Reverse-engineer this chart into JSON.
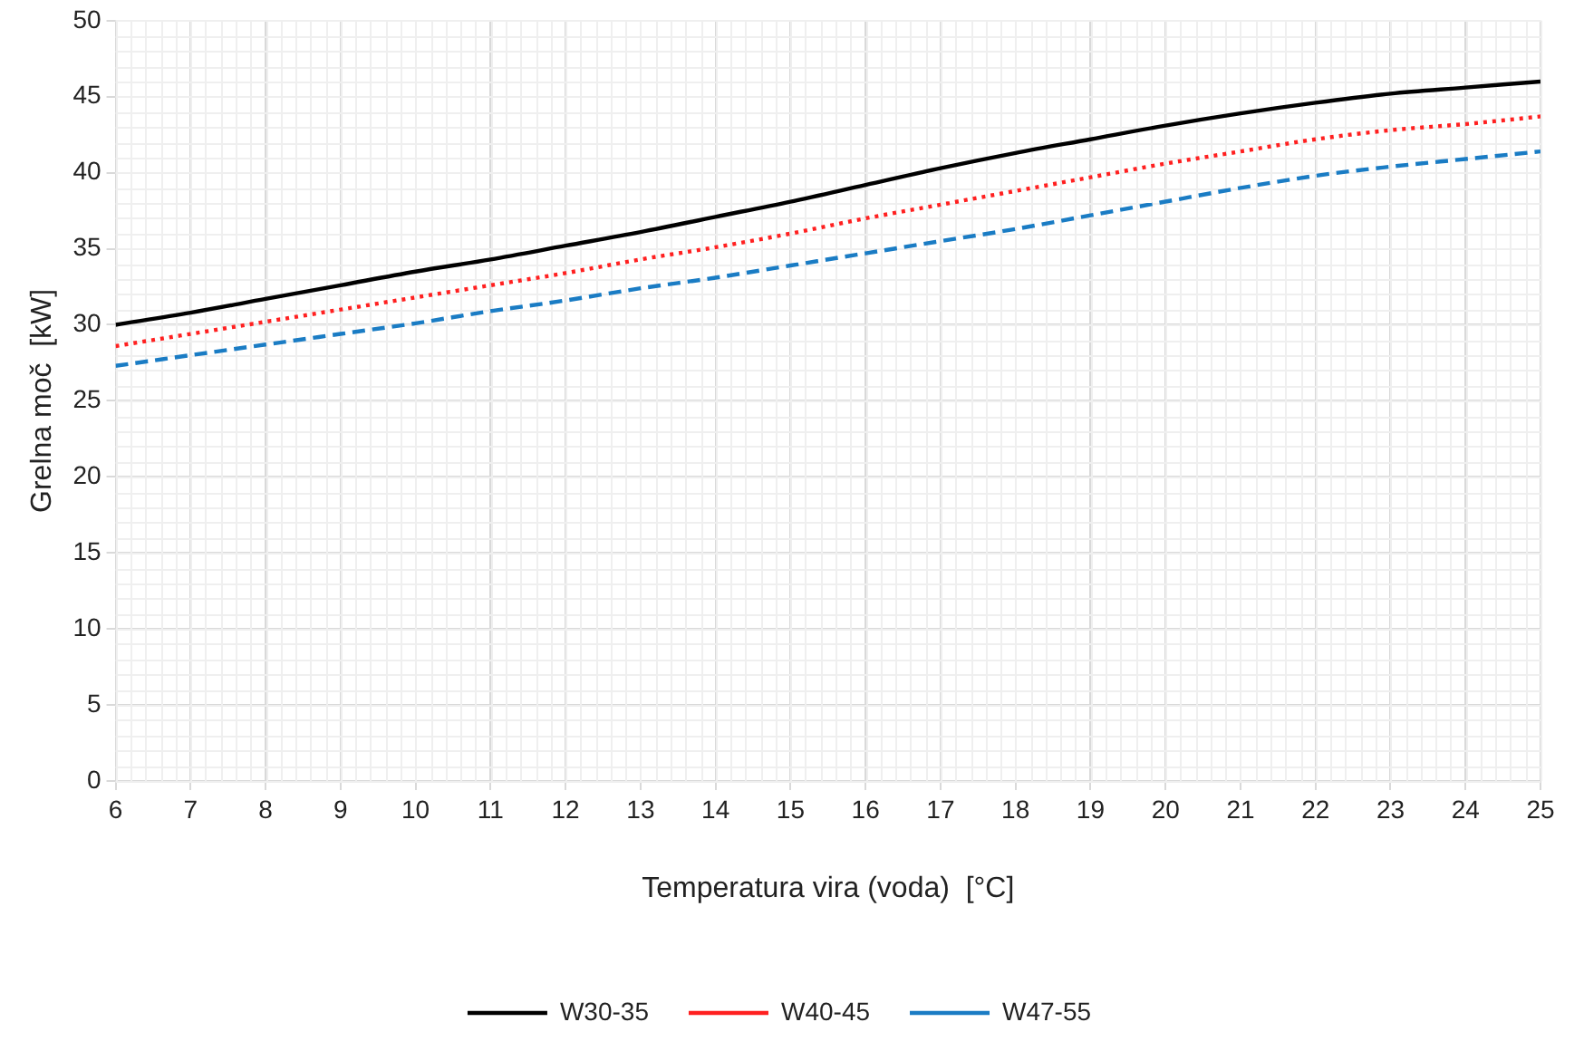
{
  "chart_data": {
    "type": "line",
    "xlabel": "Temperatura vira (voda)  [°C]",
    "ylabel": "Grelna moč  [kW]",
    "x": [
      6,
      7,
      8,
      9,
      10,
      11,
      12,
      13,
      14,
      15,
      16,
      17,
      18,
      19,
      20,
      21,
      22,
      23,
      24,
      25
    ],
    "series": [
      {
        "name": "W30-35",
        "color": "#000000",
        "line_style": "solid",
        "values": [
          30,
          30.8,
          31.7,
          32.6,
          33.5,
          34.3,
          35.2,
          36.1,
          37.1,
          38.1,
          39.2,
          40.3,
          41.3,
          42.2,
          43.1,
          43.9,
          44.6,
          45.2,
          45.6,
          46.0
        ]
      },
      {
        "name": "W40-45",
        "color": "#ff2020",
        "line_style": "dotted",
        "values": [
          28.6,
          29.4,
          30.2,
          31.0,
          31.8,
          32.6,
          33.4,
          34.3,
          35.1,
          36.0,
          37.0,
          37.9,
          38.8,
          39.7,
          40.6,
          41.4,
          42.2,
          42.8,
          43.2,
          43.7
        ]
      },
      {
        "name": "W47-55",
        "color": "#1a7cc4",
        "line_style": "dashed",
        "values": [
          27.3,
          28.0,
          28.7,
          29.4,
          30.1,
          30.9,
          31.6,
          32.4,
          33.1,
          33.9,
          34.7,
          35.5,
          36.3,
          37.2,
          38.1,
          39.0,
          39.8,
          40.4,
          40.9,
          41.4
        ]
      }
    ],
    "xlim": [
      6,
      25
    ],
    "xticks": [
      6,
      7,
      8,
      9,
      10,
      11,
      12,
      13,
      14,
      15,
      16,
      17,
      18,
      19,
      20,
      21,
      22,
      23,
      24,
      25
    ],
    "ylim": [
      0,
      50
    ],
    "yticks": [
      0,
      5,
      10,
      15,
      20,
      25,
      30,
      35,
      40,
      45,
      50
    ],
    "grid": true,
    "legend": "bottom",
    "marker": "none"
  }
}
